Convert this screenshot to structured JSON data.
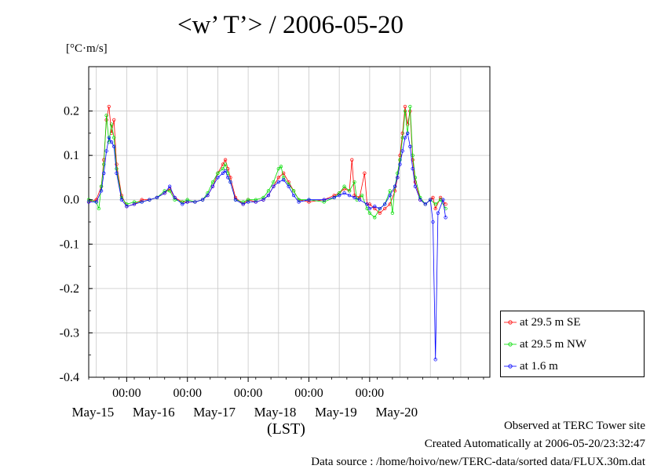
{
  "chart_data": {
    "type": "line",
    "title": "<w’ T’> / 2006-05-20",
    "ylabel": "[°C·m/s]",
    "xlabel": "(LST)",
    "ylim": [
      -0.4,
      0.3
    ],
    "yticks": [
      0.2,
      0.1,
      0.0,
      -0.1,
      -0.2,
      -0.3,
      -0.4
    ],
    "ytick_labels": [
      "0.2",
      "0.1",
      "0.0",
      "-0.1",
      "-0.2",
      "-0.3",
      "-0.4"
    ],
    "xlim": [
      "2006-05-14T09:00",
      "2006-05-20T23:30"
    ],
    "time_ticks": [
      "00:00",
      "00:00",
      "00:00",
      "00:00",
      "00:00"
    ],
    "date_labels": [
      "May-15",
      "May-16",
      "May-17",
      "May-18",
      "May-19",
      "May-20"
    ],
    "grid": true,
    "legend_position": "bottom-right, outside plot",
    "series": [
      {
        "name": "at 29.5 m SE",
        "color": "#ff0000",
        "points": [
          [
            "2006-05-14T09:00",
            -0.005
          ],
          [
            "2006-05-14T12:00",
            0.0
          ],
          [
            "2006-05-14T14:00",
            0.03
          ],
          [
            "2006-05-14T15:00",
            0.09
          ],
          [
            "2006-05-14T16:00",
            0.18
          ],
          [
            "2006-05-14T17:00",
            0.21
          ],
          [
            "2006-05-14T18:00",
            0.15
          ],
          [
            "2006-05-14T19:00",
            0.18
          ],
          [
            "2006-05-14T20:00",
            0.08
          ],
          [
            "2006-05-14T22:00",
            0.01
          ],
          [
            "2006-05-15T00:00",
            -0.015
          ],
          [
            "2006-05-15T03:00",
            -0.01
          ],
          [
            "2006-05-15T06:00",
            0.0
          ],
          [
            "2006-05-15T09:00",
            0.0
          ],
          [
            "2006-05-15T12:00",
            0.005
          ],
          [
            "2006-05-15T15:00",
            0.015
          ],
          [
            "2006-05-15T17:00",
            0.025
          ],
          [
            "2006-05-15T19:00",
            0.005
          ],
          [
            "2006-05-15T22:00",
            -0.005
          ],
          [
            "2006-05-16T00:00",
            -0.005
          ],
          [
            "2006-05-16T03:00",
            -0.005
          ],
          [
            "2006-05-16T06:00",
            0.0
          ],
          [
            "2006-05-16T08:00",
            0.01
          ],
          [
            "2006-05-16T10:00",
            0.03
          ],
          [
            "2006-05-16T12:00",
            0.06
          ],
          [
            "2006-05-16T14:00",
            0.08
          ],
          [
            "2006-05-16T15:00",
            0.09
          ],
          [
            "2006-05-16T16:00",
            0.07
          ],
          [
            "2006-05-16T17:00",
            0.05
          ],
          [
            "2006-05-16T19:00",
            0.005
          ],
          [
            "2006-05-16T22:00",
            -0.01
          ],
          [
            "2006-05-17T00:00",
            0.0
          ],
          [
            "2006-05-17T03:00",
            -0.005
          ],
          [
            "2006-05-17T06:00",
            0.0
          ],
          [
            "2006-05-17T08:00",
            0.01
          ],
          [
            "2006-05-17T10:00",
            0.03
          ],
          [
            "2006-05-17T12:00",
            0.05
          ],
          [
            "2006-05-17T14:00",
            0.06
          ],
          [
            "2006-05-17T16:00",
            0.04
          ],
          [
            "2006-05-17T18:00",
            0.02
          ],
          [
            "2006-05-17T20:00",
            0.0
          ],
          [
            "2006-05-18T00:00",
            -0.005
          ],
          [
            "2006-05-18T06:00",
            0.0
          ],
          [
            "2006-05-18T10:00",
            0.01
          ],
          [
            "2006-05-18T12:00",
            0.015
          ],
          [
            "2006-05-18T14:00",
            0.025
          ],
          [
            "2006-05-18T16:00",
            0.02
          ],
          [
            "2006-05-18T17:00",
            0.09
          ],
          [
            "2006-05-18T18:00",
            0.01
          ],
          [
            "2006-05-18T20:00",
            0.005
          ],
          [
            "2006-05-18T22:00",
            0.06
          ],
          [
            "2006-05-18T23:00",
            -0.01
          ],
          [
            "2006-05-19T00:00",
            -0.01
          ],
          [
            "2006-05-19T02:00",
            -0.02
          ],
          [
            "2006-05-19T04:00",
            -0.03
          ],
          [
            "2006-05-19T06:00",
            -0.02
          ],
          [
            "2006-05-19T08:00",
            -0.01
          ],
          [
            "2006-05-19T10:00",
            0.02
          ],
          [
            "2006-05-19T11:00",
            0.05
          ],
          [
            "2006-05-19T12:00",
            0.1
          ],
          [
            "2006-05-19T13:00",
            0.15
          ],
          [
            "2006-05-19T14:00",
            0.21
          ],
          [
            "2006-05-19T15:00",
            0.17
          ],
          [
            "2006-05-19T16:00",
            0.2
          ],
          [
            "2006-05-19T17:00",
            0.09
          ],
          [
            "2006-05-19T18:00",
            0.04
          ],
          [
            "2006-05-19T20:00",
            0.0
          ],
          [
            "2006-05-19T22:00",
            -0.01
          ],
          [
            "2006-05-20T00:00",
            0.0
          ],
          [
            "2006-05-20T01:00",
            0.005
          ],
          [
            "2006-05-20T02:00",
            -0.02
          ],
          [
            "2006-05-20T04:00",
            0.005
          ],
          [
            "2006-05-20T06:00",
            -0.01
          ]
        ]
      },
      {
        "name": "at 29.5 m NW",
        "color": "#00dd00",
        "points": [
          [
            "2006-05-14T09:00",
            0.0
          ],
          [
            "2006-05-14T12:00",
            -0.005
          ],
          [
            "2006-05-14T13:00",
            -0.02
          ],
          [
            "2006-05-14T14:00",
            0.03
          ],
          [
            "2006-05-14T15:00",
            0.08
          ],
          [
            "2006-05-14T16:00",
            0.19
          ],
          [
            "2006-05-14T17:00",
            0.13
          ],
          [
            "2006-05-14T18:00",
            0.17
          ],
          [
            "2006-05-14T19:00",
            0.14
          ],
          [
            "2006-05-14T20:00",
            0.07
          ],
          [
            "2006-05-14T22:00",
            0.005
          ],
          [
            "2006-05-15T00:00",
            -0.01
          ],
          [
            "2006-05-15T03:00",
            -0.005
          ],
          [
            "2006-05-15T06:00",
            -0.005
          ],
          [
            "2006-05-15T09:00",
            0.0
          ],
          [
            "2006-05-15T12:00",
            0.005
          ],
          [
            "2006-05-15T15:00",
            0.02
          ],
          [
            "2006-05-15T17:00",
            0.02
          ],
          [
            "2006-05-15T19:00",
            0.0
          ],
          [
            "2006-05-15T22:00",
            -0.005
          ],
          [
            "2006-05-16T00:00",
            0.0
          ],
          [
            "2006-05-16T03:00",
            -0.005
          ],
          [
            "2006-05-16T06:00",
            0.0
          ],
          [
            "2006-05-16T08:00",
            0.015
          ],
          [
            "2006-05-16T10:00",
            0.04
          ],
          [
            "2006-05-16T12:00",
            0.06
          ],
          [
            "2006-05-16T14:00",
            0.07
          ],
          [
            "2006-05-16T15:00",
            0.08
          ],
          [
            "2006-05-16T16:00",
            0.06
          ],
          [
            "2006-05-16T17:00",
            0.04
          ],
          [
            "2006-05-16T19:00",
            0.0
          ],
          [
            "2006-05-16T22:00",
            -0.005
          ],
          [
            "2006-05-17T00:00",
            0.0
          ],
          [
            "2006-05-17T03:00",
            0.0
          ],
          [
            "2006-05-17T06:00",
            0.005
          ],
          [
            "2006-05-17T08:00",
            0.02
          ],
          [
            "2006-05-17T10:00",
            0.04
          ],
          [
            "2006-05-17T12:00",
            0.07
          ],
          [
            "2006-05-17T13:00",
            0.075
          ],
          [
            "2006-05-17T14:00",
            0.05
          ],
          [
            "2006-05-17T16:00",
            0.035
          ],
          [
            "2006-05-17T18:00",
            0.02
          ],
          [
            "2006-05-17T20:00",
            0.0
          ],
          [
            "2006-05-18T00:00",
            0.0
          ],
          [
            "2006-05-18T06:00",
            -0.005
          ],
          [
            "2006-05-18T10:00",
            0.005
          ],
          [
            "2006-05-18T12:00",
            0.015
          ],
          [
            "2006-05-18T14:00",
            0.03
          ],
          [
            "2006-05-18T16:00",
            0.02
          ],
          [
            "2006-05-18T18:00",
            0.04
          ],
          [
            "2006-05-18T19:00",
            0.0
          ],
          [
            "2006-05-18T21:00",
            0.01
          ],
          [
            "2006-05-18T23:00",
            -0.02
          ],
          [
            "2006-05-19T00:00",
            -0.03
          ],
          [
            "2006-05-19T02:00",
            -0.04
          ],
          [
            "2006-05-19T04:00",
            -0.02
          ],
          [
            "2006-05-19T06:00",
            -0.01
          ],
          [
            "2006-05-19T08:00",
            0.02
          ],
          [
            "2006-05-19T09:00",
            -0.03
          ],
          [
            "2006-05-19T10:00",
            0.03
          ],
          [
            "2006-05-19T11:00",
            0.06
          ],
          [
            "2006-05-19T12:00",
            0.09
          ],
          [
            "2006-05-19T13:00",
            0.14
          ],
          [
            "2006-05-19T14:00",
            0.2
          ],
          [
            "2006-05-19T15:00",
            0.15
          ],
          [
            "2006-05-19T16:00",
            0.21
          ],
          [
            "2006-05-19T17:00",
            0.1
          ],
          [
            "2006-05-19T18:00",
            0.05
          ],
          [
            "2006-05-19T20:00",
            0.005
          ],
          [
            "2006-05-19T22:00",
            -0.01
          ],
          [
            "2006-05-20T00:00",
            0.0
          ],
          [
            "2006-05-20T02:00",
            -0.01
          ],
          [
            "2006-05-20T04:00",
            0.0
          ],
          [
            "2006-05-20T06:00",
            -0.02
          ]
        ]
      },
      {
        "name": "at 1.6 m",
        "color": "#0000ff",
        "points": [
          [
            "2006-05-14T09:00",
            -0.005
          ],
          [
            "2006-05-14T12:00",
            -0.005
          ],
          [
            "2006-05-14T14:00",
            0.02
          ],
          [
            "2006-05-14T15:00",
            0.06
          ],
          [
            "2006-05-14T16:00",
            0.11
          ],
          [
            "2006-05-14T17:00",
            0.14
          ],
          [
            "2006-05-14T18:00",
            0.13
          ],
          [
            "2006-05-14T19:00",
            0.12
          ],
          [
            "2006-05-14T20:00",
            0.06
          ],
          [
            "2006-05-14T22:00",
            0.0
          ],
          [
            "2006-05-15T00:00",
            -0.015
          ],
          [
            "2006-05-15T03:00",
            -0.01
          ],
          [
            "2006-05-15T06:00",
            -0.005
          ],
          [
            "2006-05-15T09:00",
            0.0
          ],
          [
            "2006-05-15T12:00",
            0.005
          ],
          [
            "2006-05-15T15:00",
            0.015
          ],
          [
            "2006-05-15T17:00",
            0.03
          ],
          [
            "2006-05-15T19:00",
            0.005
          ],
          [
            "2006-05-15T22:00",
            -0.01
          ],
          [
            "2006-05-16T00:00",
            -0.005
          ],
          [
            "2006-05-16T03:00",
            -0.005
          ],
          [
            "2006-05-16T06:00",
            0.0
          ],
          [
            "2006-05-16T08:00",
            0.01
          ],
          [
            "2006-05-16T10:00",
            0.03
          ],
          [
            "2006-05-16T12:00",
            0.05
          ],
          [
            "2006-05-16T14:00",
            0.06
          ],
          [
            "2006-05-16T15:00",
            0.065
          ],
          [
            "2006-05-16T16:00",
            0.05
          ],
          [
            "2006-05-16T17:00",
            0.04
          ],
          [
            "2006-05-16T19:00",
            0.0
          ],
          [
            "2006-05-16T22:00",
            -0.01
          ],
          [
            "2006-05-17T00:00",
            -0.005
          ],
          [
            "2006-05-17T03:00",
            -0.005
          ],
          [
            "2006-05-17T06:00",
            0.0
          ],
          [
            "2006-05-17T08:00",
            0.01
          ],
          [
            "2006-05-17T10:00",
            0.03
          ],
          [
            "2006-05-17T12:00",
            0.04
          ],
          [
            "2006-05-17T14:00",
            0.045
          ],
          [
            "2006-05-17T16:00",
            0.03
          ],
          [
            "2006-05-17T18:00",
            0.01
          ],
          [
            "2006-05-17T20:00",
            -0.005
          ],
          [
            "2006-05-18T00:00",
            0.0
          ],
          [
            "2006-05-18T06:00",
            0.0
          ],
          [
            "2006-05-18T10:00",
            0.005
          ],
          [
            "2006-05-18T12:00",
            0.01
          ],
          [
            "2006-05-18T14:00",
            0.015
          ],
          [
            "2006-05-18T16:00",
            0.01
          ],
          [
            "2006-05-18T18:00",
            0.005
          ],
          [
            "2006-05-18T20:00",
            0.0
          ],
          [
            "2006-05-18T23:00",
            -0.01
          ],
          [
            "2006-05-19T00:00",
            -0.02
          ],
          [
            "2006-05-19T02:00",
            -0.015
          ],
          [
            "2006-05-19T04:00",
            -0.02
          ],
          [
            "2006-05-19T06:00",
            -0.01
          ],
          [
            "2006-05-19T08:00",
            0.01
          ],
          [
            "2006-05-19T10:00",
            0.03
          ],
          [
            "2006-05-19T11:00",
            0.05
          ],
          [
            "2006-05-19T12:00",
            0.08
          ],
          [
            "2006-05-19T13:00",
            0.11
          ],
          [
            "2006-05-19T14:00",
            0.14
          ],
          [
            "2006-05-19T15:00",
            0.15
          ],
          [
            "2006-05-19T16:00",
            0.12
          ],
          [
            "2006-05-19T17:00",
            0.07
          ],
          [
            "2006-05-19T18:00",
            0.03
          ],
          [
            "2006-05-19T20:00",
            0.0
          ],
          [
            "2006-05-19T22:00",
            -0.01
          ],
          [
            "2006-05-20T00:00",
            0.0
          ],
          [
            "2006-05-20T01:00",
            -0.05
          ],
          [
            "2006-05-20T02:00",
            -0.36
          ],
          [
            "2006-05-20T03:00",
            -0.03
          ],
          [
            "2006-05-20T05:00",
            0.0
          ],
          [
            "2006-05-20T06:00",
            -0.04
          ]
        ]
      }
    ]
  },
  "footer": {
    "line1": "Observed at TERC Tower site",
    "line2": "Created Automatically at 2006-05-20/23:32:47",
    "line3": "Data source : /home/hoivo/new/TERC-data/sorted  data/FLUX.30m.dat"
  }
}
